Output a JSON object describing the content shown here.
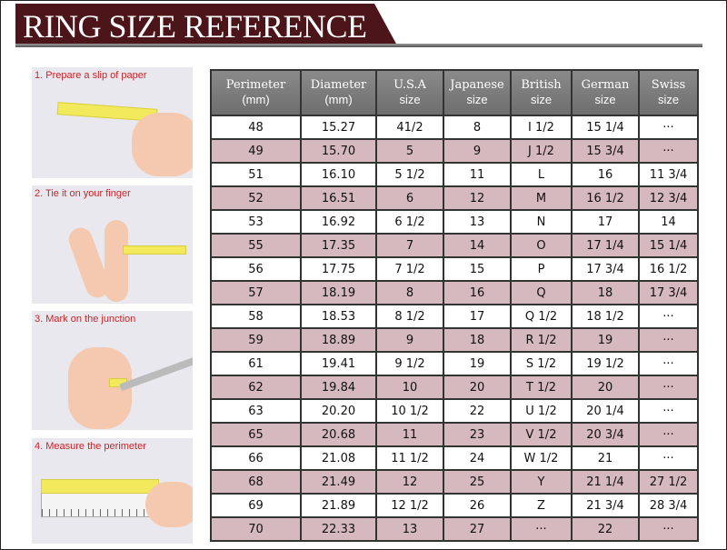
{
  "title": "RING SIZE REFERENCE",
  "colors": {
    "banner": "#4b1519",
    "alt_row": "#d5b9bf",
    "header": "#7a7a7a",
    "step_text": "#c0282c"
  },
  "steps": [
    "1. Prepare a slip of paper",
    "2. Tie it on your finger",
    "3. Mark on the junction",
    "4. Measure the perimeter"
  ],
  "columns": [
    [
      "Perimeter",
      "(mm)"
    ],
    [
      "Diameter",
      "(mm)"
    ],
    [
      "U.S.A",
      "size"
    ],
    [
      "Japanese",
      "size"
    ],
    [
      "British",
      "size"
    ],
    [
      "German",
      "size"
    ],
    [
      "Swiss",
      "size"
    ]
  ],
  "rows": [
    [
      "48",
      "15.27",
      "41/2",
      "8",
      "I 1/2",
      "15 1/4",
      "···"
    ],
    [
      "49",
      "15.70",
      "5",
      "9",
      "J 1/2",
      "15 3/4",
      "···"
    ],
    [
      "51",
      "16.10",
      "5 1/2",
      "11",
      "L",
      "16",
      "11 3/4"
    ],
    [
      "52",
      "16.51",
      "6",
      "12",
      "M",
      "16 1/2",
      "12 3/4"
    ],
    [
      "53",
      "16.92",
      "6 1/2",
      "13",
      "N",
      "17",
      "14"
    ],
    [
      "55",
      "17.35",
      "7",
      "14",
      "O",
      "17 1/4",
      "15 1/4"
    ],
    [
      "56",
      "17.75",
      "7 1/2",
      "15",
      "P",
      "17 3/4",
      "16 1/2"
    ],
    [
      "57",
      "18.19",
      "8",
      "16",
      "Q",
      "18",
      "17 3/4"
    ],
    [
      "58",
      "18.53",
      "8 1/2",
      "17",
      "Q  1/2",
      "18 1/2",
      "···"
    ],
    [
      "59",
      "18.89",
      "9",
      "18",
      "R 1/2",
      "19",
      "···"
    ],
    [
      "61",
      "19.41",
      "9 1/2",
      "19",
      "S 1/2",
      "19 1/2",
      "···"
    ],
    [
      "62",
      "19.84",
      "10",
      "20",
      "T 1/2",
      "20",
      "···"
    ],
    [
      "63",
      "20.20",
      "10 1/2",
      "22",
      "U 1/2",
      "20 1/4",
      "···"
    ],
    [
      "65",
      "20.68",
      "11",
      "23",
      "V 1/2",
      "20 3/4",
      "···"
    ],
    [
      "66",
      "21.08",
      "11 1/2",
      "24",
      "W 1/2",
      "21",
      "···"
    ],
    [
      "68",
      "21.49",
      "12",
      "25",
      "Y",
      "21 1/4",
      "27 1/2"
    ],
    [
      "69",
      "21.89",
      "12 1/2",
      "26",
      "Z",
      "21 3/4",
      "28 3/4"
    ],
    [
      "70",
      "22.33",
      "13",
      "27",
      "···",
      "22",
      "···"
    ]
  ]
}
